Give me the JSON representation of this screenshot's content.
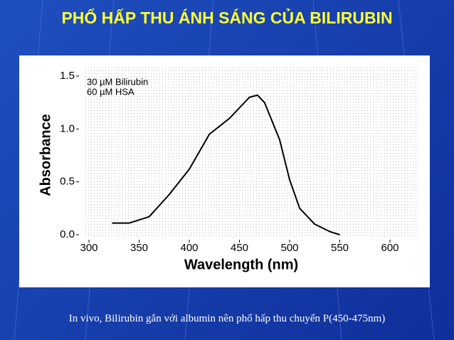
{
  "slide": {
    "title": "PHỔ HẤP THU ÁNH SÁNG CỦA BILIRUBIN",
    "caption": "In vivo, Bilirubin gắn với albumin nên phổ hấp thu chuyển P(450-475nm)"
  },
  "chart_data": {
    "type": "line",
    "xlabel": "Wavelength (nm)",
    "ylabel": "Absorbance",
    "annotations": [
      "30 µM Bilirubin",
      "60 µM HSA"
    ],
    "x": [
      323,
      340,
      360,
      380,
      400,
      420,
      440,
      450,
      460,
      468,
      475,
      490,
      500,
      510,
      525,
      540,
      550
    ],
    "values": [
      0.11,
      0.11,
      0.17,
      0.38,
      0.62,
      0.95,
      1.1,
      1.2,
      1.3,
      1.32,
      1.25,
      0.9,
      0.52,
      0.25,
      0.1,
      0.03,
      0
    ],
    "color": "#000000",
    "xlim": [
      300,
      600
    ],
    "xticks": [
      300,
      350,
      400,
      450,
      500,
      550,
      600
    ],
    "ylim": [
      0,
      1.5
    ],
    "yticks": [
      {
        "value": 0,
        "label": "0.0"
      },
      0.5,
      {
        "value": 1,
        "label": "1.0"
      },
      1.5
    ]
  }
}
